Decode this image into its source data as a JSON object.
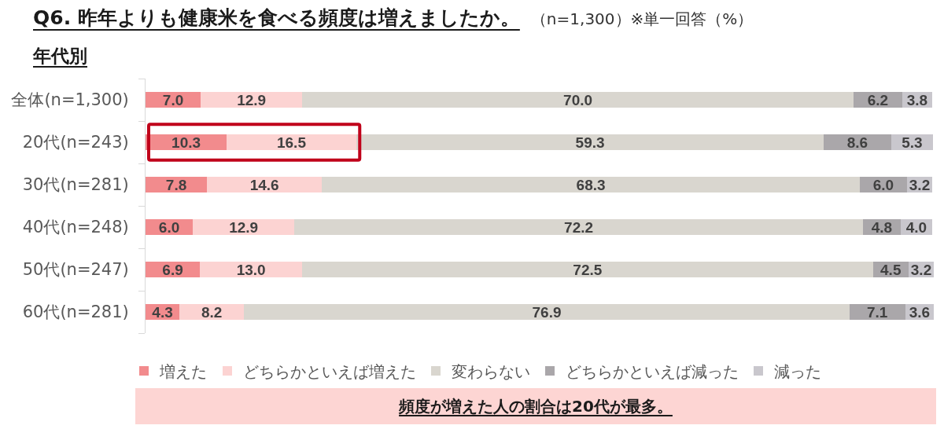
{
  "chart_data": {
    "type": "bar",
    "orientation": "horizontal",
    "stacked": true,
    "title": "Q6. 昨年よりも健康米を食べる頻度は増えましたか。",
    "subtitle": "年代別",
    "annotations": [
      "（n=1,300）※単一回答（%）",
      "頻度が増えた人の割合は20代が最多。"
    ],
    "categories": [
      "全体(n=1,300)",
      "20代(n=243)",
      "30代(n=281)",
      "40代(n=248)",
      "50代(n=247)",
      "60代(n=281)"
    ],
    "series": [
      {
        "name": "増えた",
        "color": "#f28b8d",
        "values": [
          7.0,
          10.3,
          7.8,
          6.0,
          6.9,
          4.3
        ],
        "value_labels": [
          "7.0",
          "10.3",
          "7.8",
          "6.0",
          "6.9",
          "4.3"
        ]
      },
      {
        "name": "どちらかといえば増えた",
        "color": "#fcd3d2",
        "values": [
          12.9,
          16.5,
          14.6,
          12.9,
          13.0,
          8.2
        ],
        "value_labels": [
          "12.9",
          "16.5",
          "14.6",
          "12.9",
          "13.0",
          "8.2"
        ]
      },
      {
        "name": "変わらない",
        "color": "#d9d6cf",
        "values": [
          70.0,
          59.3,
          68.3,
          72.2,
          72.5,
          76.9
        ],
        "value_labels": [
          "70.0",
          "59.3",
          "68.3",
          "72.2",
          "72.5",
          "76.9"
        ]
      },
      {
        "name": "どちらかといえば減った",
        "color": "#aaa7aa",
        "values": [
          6.2,
          8.6,
          6.0,
          4.8,
          4.5,
          7.1
        ],
        "value_labels": [
          "6.2",
          "8.6",
          "6.0",
          "4.8",
          "4.5",
          "7.1"
        ]
      },
      {
        "name": "減った",
        "color": "#c9c7cd",
        "values": [
          3.8,
          5.3,
          3.2,
          4.0,
          3.2,
          3.6
        ],
        "value_labels": [
          "3.8",
          "5.3",
          "3.2",
          "4.0",
          "3.2",
          "3.6"
        ]
      }
    ],
    "xlim": [
      0,
      100.2
    ],
    "tick_labels": "y",
    "legend": "bottom"
  }
}
